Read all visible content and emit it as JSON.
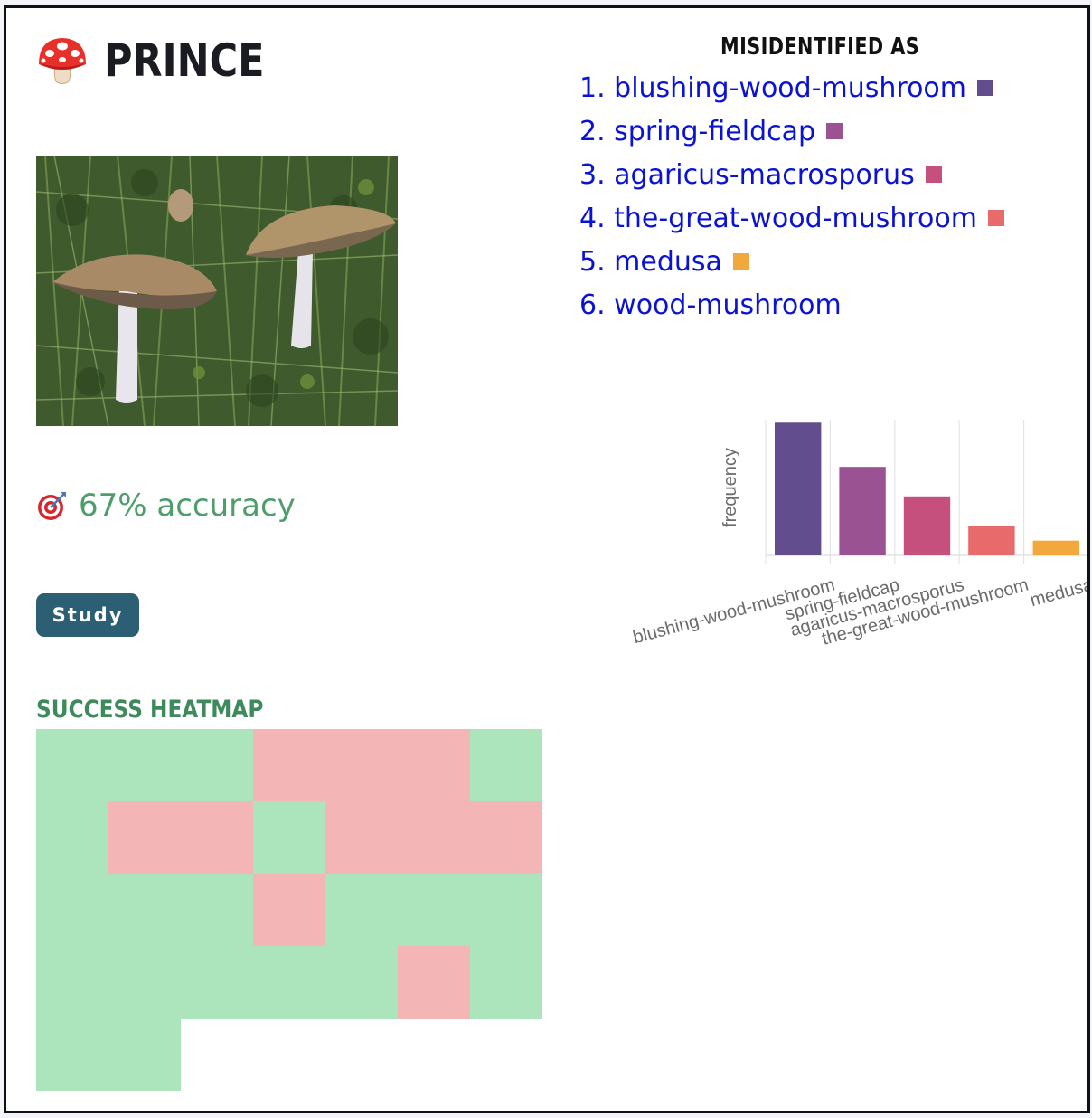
{
  "title": "PRINCE",
  "accuracy": {
    "text": "67% accuracy",
    "color": "#4e9e6c"
  },
  "study_button": {
    "label": "Study",
    "color": "#2c5f73"
  },
  "heatmap": {
    "title": "SUCCESS HEATMAP",
    "success_color": "#ace4bc",
    "fail_color": "#f3b5b5",
    "rows": [
      [
        "success",
        "success",
        "success",
        "fail",
        "fail",
        "fail",
        "success"
      ],
      [
        "success",
        "fail",
        "fail",
        "success",
        "fail",
        "fail",
        "fail"
      ],
      [
        "success",
        "success",
        "success",
        "fail",
        "success",
        "success",
        "success"
      ],
      [
        "success",
        "success",
        "success",
        "success",
        "success",
        "fail",
        "success"
      ],
      [
        "success",
        "success",
        "empty",
        "empty",
        "empty",
        "empty",
        "empty"
      ]
    ]
  },
  "misidentified": {
    "title": "MISIDENTIFIED AS",
    "items": [
      {
        "label": "1. blushing-wood-mushroom",
        "color": "#624e8e"
      },
      {
        "label": "2. spring-fieldcap",
        "color": "#9b5292"
      },
      {
        "label": "3. agaricus-macrosporus",
        "color": "#c6507d"
      },
      {
        "label": "4. the-great-wood-mushroom",
        "color": "#e96a6a"
      },
      {
        "label": "5. medusa",
        "color": "#f2a83a"
      },
      {
        "label": "6. wood-mushroom",
        "color": null
      }
    ]
  },
  "chart_data": {
    "type": "bar",
    "categories": [
      "blushing-wood-mushroom",
      "spring-fieldcap",
      "agaricus-macrosporus",
      "the-great-wood-mushroom",
      "medusa"
    ],
    "values": [
      9,
      6,
      4,
      2,
      1
    ],
    "colors": [
      "#624e8e",
      "#9b5292",
      "#c6507d",
      "#e96a6a",
      "#f2a83a"
    ],
    "ylabel": "frequency",
    "xlabel": "",
    "ylim": [
      0,
      9.2
    ],
    "grid": true
  }
}
